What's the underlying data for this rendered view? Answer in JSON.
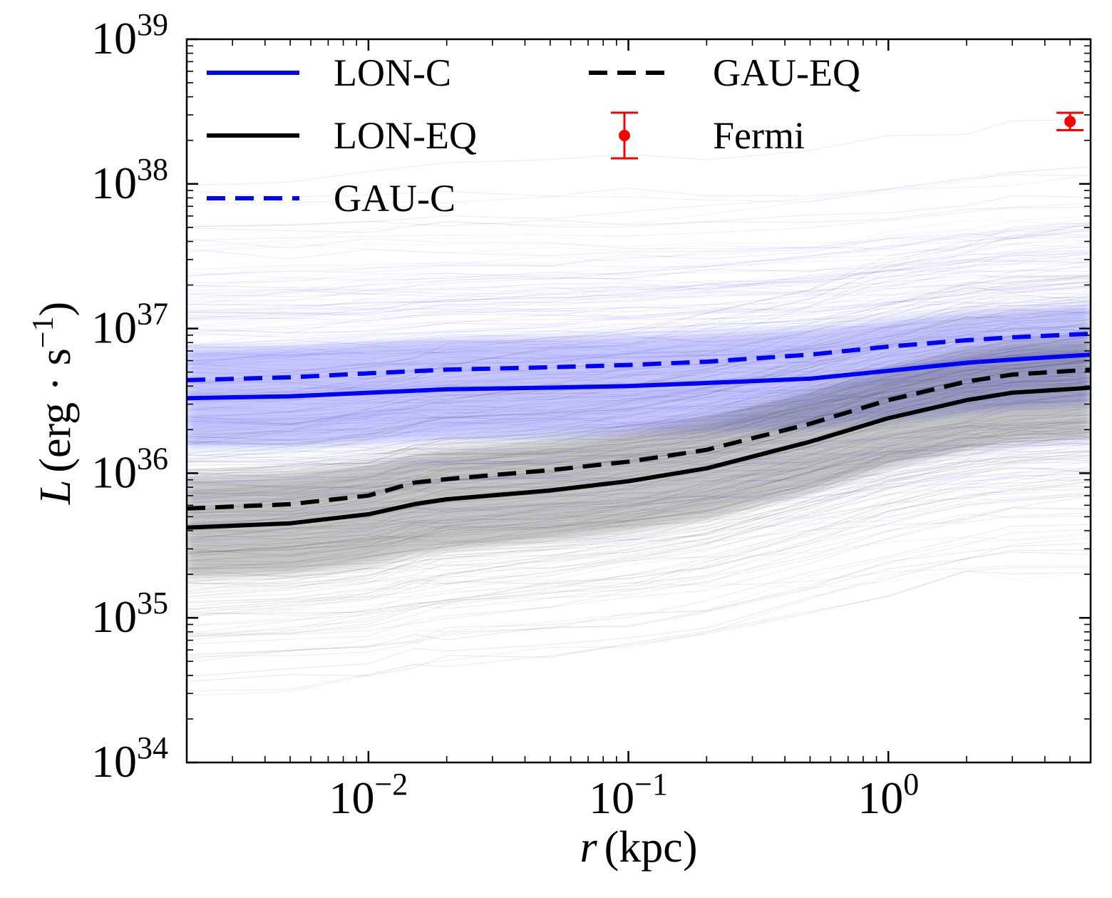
{
  "chart_data": {
    "type": "line",
    "xscale": "log",
    "yscale": "log",
    "xlabel": {
      "var": "r",
      "unit": "(kpc)"
    },
    "ylabel": {
      "var": "L",
      "unit_pre": "(erg · s",
      "unit_exp": "−1",
      "unit_post": ")"
    },
    "xlim": [
      0.002,
      6.0
    ],
    "ylim": [
      1e+34,
      1e+39
    ],
    "xticks": [
      {
        "value": 0.01,
        "base": "10",
        "exp": "−2"
      },
      {
        "value": 0.1,
        "base": "10",
        "exp": "−1"
      },
      {
        "value": 1,
        "base": "10",
        "exp": "0"
      }
    ],
    "yticks": [
      {
        "value": 1e+34,
        "base": "10",
        "exp": "34"
      },
      {
        "value": 1e+35,
        "base": "10",
        "exp": "35"
      },
      {
        "value": 1e+36,
        "base": "10",
        "exp": "36"
      },
      {
        "value": 1e+37,
        "base": "10",
        "exp": "37"
      },
      {
        "value": 1e+38,
        "base": "10",
        "exp": "38"
      },
      {
        "value": 1e+39,
        "base": "10",
        "exp": "39"
      }
    ],
    "series": [
      {
        "name": "LON-C",
        "color": "#0000ff",
        "style": "solid",
        "x": [
          0.002,
          0.005,
          0.01,
          0.02,
          0.05,
          0.1,
          0.2,
          0.5,
          1,
          2,
          3,
          6
        ],
        "y": [
          3.3e+36,
          3.4e+36,
          3.6e+36,
          3.8e+36,
          3.9e+36,
          4e+36,
          4.2e+36,
          4.5e+36,
          5.1e+36,
          5.8e+36,
          6.1e+36,
          6.6e+36
        ]
      },
      {
        "name": "LON-EQ",
        "color": "#000000",
        "style": "solid",
        "x": [
          0.002,
          0.005,
          0.01,
          0.015,
          0.02,
          0.05,
          0.1,
          0.2,
          0.5,
          1,
          2,
          3,
          6
        ],
        "y": [
          4.2e+35,
          4.5e+35,
          5.2e+35,
          6.1e+35,
          6.6e+35,
          7.6e+35,
          8.8e+35,
          1.08e+36,
          1.65e+36,
          2.4e+36,
          3.2e+36,
          3.6e+36,
          3.9e+36
        ]
      },
      {
        "name": "GAU-C",
        "color": "#0000ff",
        "style": "dashed",
        "x": [
          0.002,
          0.005,
          0.01,
          0.02,
          0.05,
          0.1,
          0.2,
          0.5,
          1,
          2,
          3,
          6
        ],
        "y": [
          4.4e+36,
          4.6e+36,
          4.9e+36,
          5.2e+36,
          5.4e+36,
          5.6e+36,
          5.9e+36,
          6.6e+36,
          7.5e+36,
          8.3e+36,
          8.7e+36,
          9.2e+36
        ]
      },
      {
        "name": "GAU-EQ",
        "color": "#000000",
        "style": "dashed",
        "x": [
          0.002,
          0.005,
          0.01,
          0.015,
          0.02,
          0.05,
          0.1,
          0.2,
          0.5,
          1,
          2,
          3,
          6
        ],
        "y": [
          5.7e+35,
          6.1e+35,
          7e+35,
          8.6e+35,
          9.1e+35,
          1.05e+36,
          1.2e+36,
          1.45e+36,
          2.2e+36,
          3.2e+36,
          4.3e+36,
          4.8e+36,
          5.2e+36
        ]
      }
    ],
    "points": [
      {
        "name": "Fermi",
        "color": "#ff0000",
        "x": 5.0,
        "y": 2.7e+38,
        "yerr_low": 2.35e+38,
        "yerr_high": 3.1e+38
      }
    ],
    "legend": {
      "placement": "top-left",
      "entries": [
        "LON-C",
        "LON-EQ",
        "GAU-C",
        "GAU-EQ",
        "Fermi"
      ]
    },
    "bands": [
      {
        "name": "blue-realizations",
        "color": "#3a3aff",
        "center": "LON-C"
      },
      {
        "name": "black-realizations",
        "color": "#333333",
        "center": "LON-EQ"
      }
    ]
  }
}
